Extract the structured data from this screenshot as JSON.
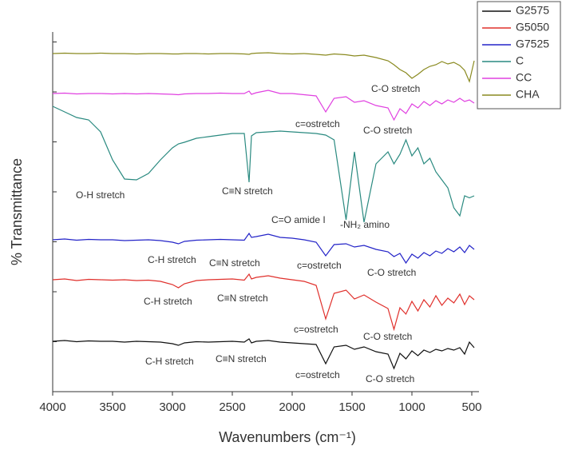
{
  "chart_data": {
    "type": "line",
    "x_label": "Wavenumbers (cm⁻¹)",
    "y_label": "% Transmittance",
    "x": [
      4000,
      3900,
      3800,
      3700,
      3600,
      3500,
      3400,
      3300,
      3200,
      3100,
      3000,
      2950,
      2900,
      2800,
      2700,
      2600,
      2500,
      2400,
      2360,
      2340,
      2300,
      2200,
      2100,
      2000,
      1900,
      1800,
      1720,
      1650,
      1550,
      1480,
      1400,
      1300,
      1200,
      1150,
      1100,
      1050,
      1000,
      950,
      900,
      850,
      800,
      750,
      700,
      650,
      600,
      560,
      520,
      480
    ],
    "xlim": [
      4000,
      440
    ],
    "xticks": [
      4000,
      3500,
      3000,
      2500,
      2000,
      1500,
      1000,
      500
    ],
    "ylim": [
      0,
      90
    ],
    "yticks": [
      12.5,
      25,
      37.5,
      50,
      62.5,
      75,
      87.5
    ],
    "legend": "top-right",
    "series": [
      {
        "name": "G2575",
        "color": "#111111",
        "values": [
          12.6,
          12.8,
          12.5,
          12.7,
          12.6,
          12.6,
          12.4,
          12.6,
          12.5,
          12.4,
          12.0,
          11.6,
          12.2,
          12.5,
          12.4,
          12.5,
          12.6,
          12.4,
          13.2,
          12.2,
          12.6,
          12.8,
          12.4,
          12.2,
          12.0,
          11.8,
          7.0,
          11.2,
          11.6,
          10.6,
          11.2,
          10.0,
          9.4,
          5.8,
          9.6,
          8.2,
          10.2,
          9.0,
          10.4,
          9.8,
          10.6,
          10.2,
          10.8,
          10.4,
          11.0,
          9.4,
          12.4,
          11.0
        ]
      },
      {
        "name": "G5050",
        "color": "#e0302c",
        "values": [
          28.0,
          28.2,
          27.8,
          28.1,
          28.0,
          27.9,
          28.0,
          27.8,
          27.9,
          27.6,
          26.8,
          26.0,
          27.0,
          27.8,
          28.0,
          28.1,
          28.2,
          27.9,
          29.4,
          28.2,
          28.6,
          29.0,
          28.4,
          28.0,
          27.6,
          26.6,
          18.2,
          24.6,
          25.4,
          23.2,
          24.2,
          22.4,
          20.8,
          15.6,
          21.0,
          19.4,
          22.6,
          20.2,
          23.0,
          21.2,
          24.0,
          21.6,
          23.4,
          22.2,
          24.4,
          21.8,
          24.0,
          23.0
        ]
      },
      {
        "name": "G7525",
        "color": "#2424c8",
        "values": [
          38.0,
          38.2,
          37.9,
          38.1,
          38.0,
          38.0,
          37.8,
          37.9,
          38.0,
          37.8,
          37.4,
          37.0,
          37.6,
          37.9,
          38.0,
          38.1,
          38.0,
          37.9,
          39.6,
          38.6,
          38.8,
          39.4,
          38.6,
          38.4,
          38.0,
          37.4,
          34.0,
          36.8,
          37.0,
          36.2,
          36.6,
          35.6,
          35.0,
          33.8,
          34.6,
          32.2,
          34.4,
          33.4,
          34.8,
          34.0,
          35.2,
          34.6,
          35.8,
          35.0,
          36.2,
          34.8,
          36.6,
          35.6
        ]
      },
      {
        "name": "C",
        "color": "#2a8a80",
        "values": [
          71.4,
          70.0,
          68.6,
          68.0,
          65.0,
          58.0,
          53.2,
          53.0,
          54.6,
          58.0,
          61.0,
          62.0,
          62.4,
          63.4,
          63.8,
          64.2,
          64.6,
          64.6,
          52.4,
          64.0,
          64.8,
          65.0,
          65.2,
          65.0,
          64.8,
          64.6,
          64.2,
          63.0,
          43.0,
          60.0,
          42.4,
          57.0,
          60.0,
          57.0,
          59.4,
          63.0,
          59.0,
          61.0,
          57.0,
          58.4,
          55.0,
          53.0,
          51.0,
          46.0,
          44.0,
          49.0,
          48.5,
          49.0
        ]
      },
      {
        "name": "CC",
        "color": "#e040e0",
        "values": [
          74.6,
          74.7,
          74.5,
          74.6,
          74.6,
          74.5,
          74.6,
          74.5,
          74.6,
          74.5,
          74.4,
          74.3,
          74.5,
          74.6,
          74.6,
          74.7,
          74.6,
          74.6,
          75.2,
          74.4,
          74.8,
          75.4,
          74.6,
          74.6,
          74.3,
          74.0,
          70.0,
          73.4,
          73.8,
          72.4,
          72.8,
          71.6,
          71.0,
          68.0,
          70.8,
          69.6,
          72.0,
          71.0,
          72.6,
          71.6,
          72.8,
          72.0,
          73.0,
          72.4,
          73.4,
          72.6,
          73.0,
          72.2
        ]
      },
      {
        "name": "CHA",
        "color": "#8a8a20",
        "values": [
          84.6,
          84.7,
          84.6,
          84.6,
          84.7,
          84.6,
          84.6,
          84.5,
          84.6,
          84.6,
          84.5,
          84.5,
          84.6,
          84.6,
          84.5,
          84.6,
          84.6,
          84.5,
          84.4,
          84.6,
          84.7,
          84.8,
          84.6,
          84.5,
          84.6,
          84.4,
          84.2,
          84.5,
          84.3,
          84.0,
          84.2,
          83.6,
          82.8,
          81.8,
          80.6,
          79.8,
          78.4,
          79.4,
          80.6,
          81.4,
          81.8,
          82.6,
          82.0,
          82.4,
          81.6,
          80.4,
          77.6,
          82.8
        ]
      }
    ],
    "annotations": [
      "C-O stretch",
      "c=ostretch",
      "C-O stretch",
      "O-H stretch",
      "C≡N stretch",
      "C=O amide I",
      "-NH₂ amino",
      "C-H stretch",
      "C≡N stretch",
      "c=ostretch",
      "C-O stretch",
      "C-H stretch",
      "C≡N stretch",
      "c=ostretch",
      "C-O stretch",
      "C-H stretch",
      "C≡N stretch",
      "c=ostretch",
      "C-O stretch"
    ]
  }
}
